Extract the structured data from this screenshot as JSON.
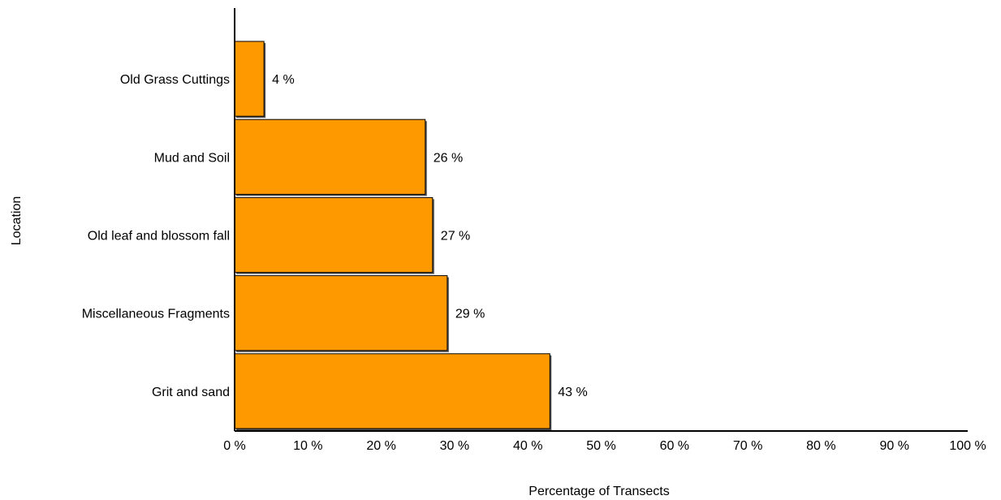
{
  "chart_data": {
    "type": "bar",
    "orientation": "horizontal",
    "categories": [
      "Old Grass Cuttings",
      "Mud and Soil",
      "Old leaf and blossom fall",
      "Miscellaneous Fragments",
      "Grit and sand"
    ],
    "values": [
      4,
      26,
      27,
      29,
      43
    ],
    "value_labels": [
      "4 %",
      "26 %",
      "27 %",
      "29 %",
      "43 %"
    ],
    "xlabel": "Percentage of Transects",
    "ylabel": "Location",
    "xlim": [
      0,
      100
    ],
    "xticks": [
      0,
      10,
      20,
      30,
      40,
      50,
      60,
      70,
      80,
      90,
      100
    ],
    "xtick_labels": [
      "0 %",
      "10 %",
      "20 %",
      "30 %",
      "40 %",
      "50 %",
      "60 %",
      "70 %",
      "80 %",
      "90 %",
      "100 %"
    ],
    "grid": false,
    "legend": "none",
    "colors": {
      "bar_fill": "#FF9900",
      "bar_stroke": "#000000",
      "bar_shadow": "#555555",
      "axis": "#000000"
    }
  }
}
